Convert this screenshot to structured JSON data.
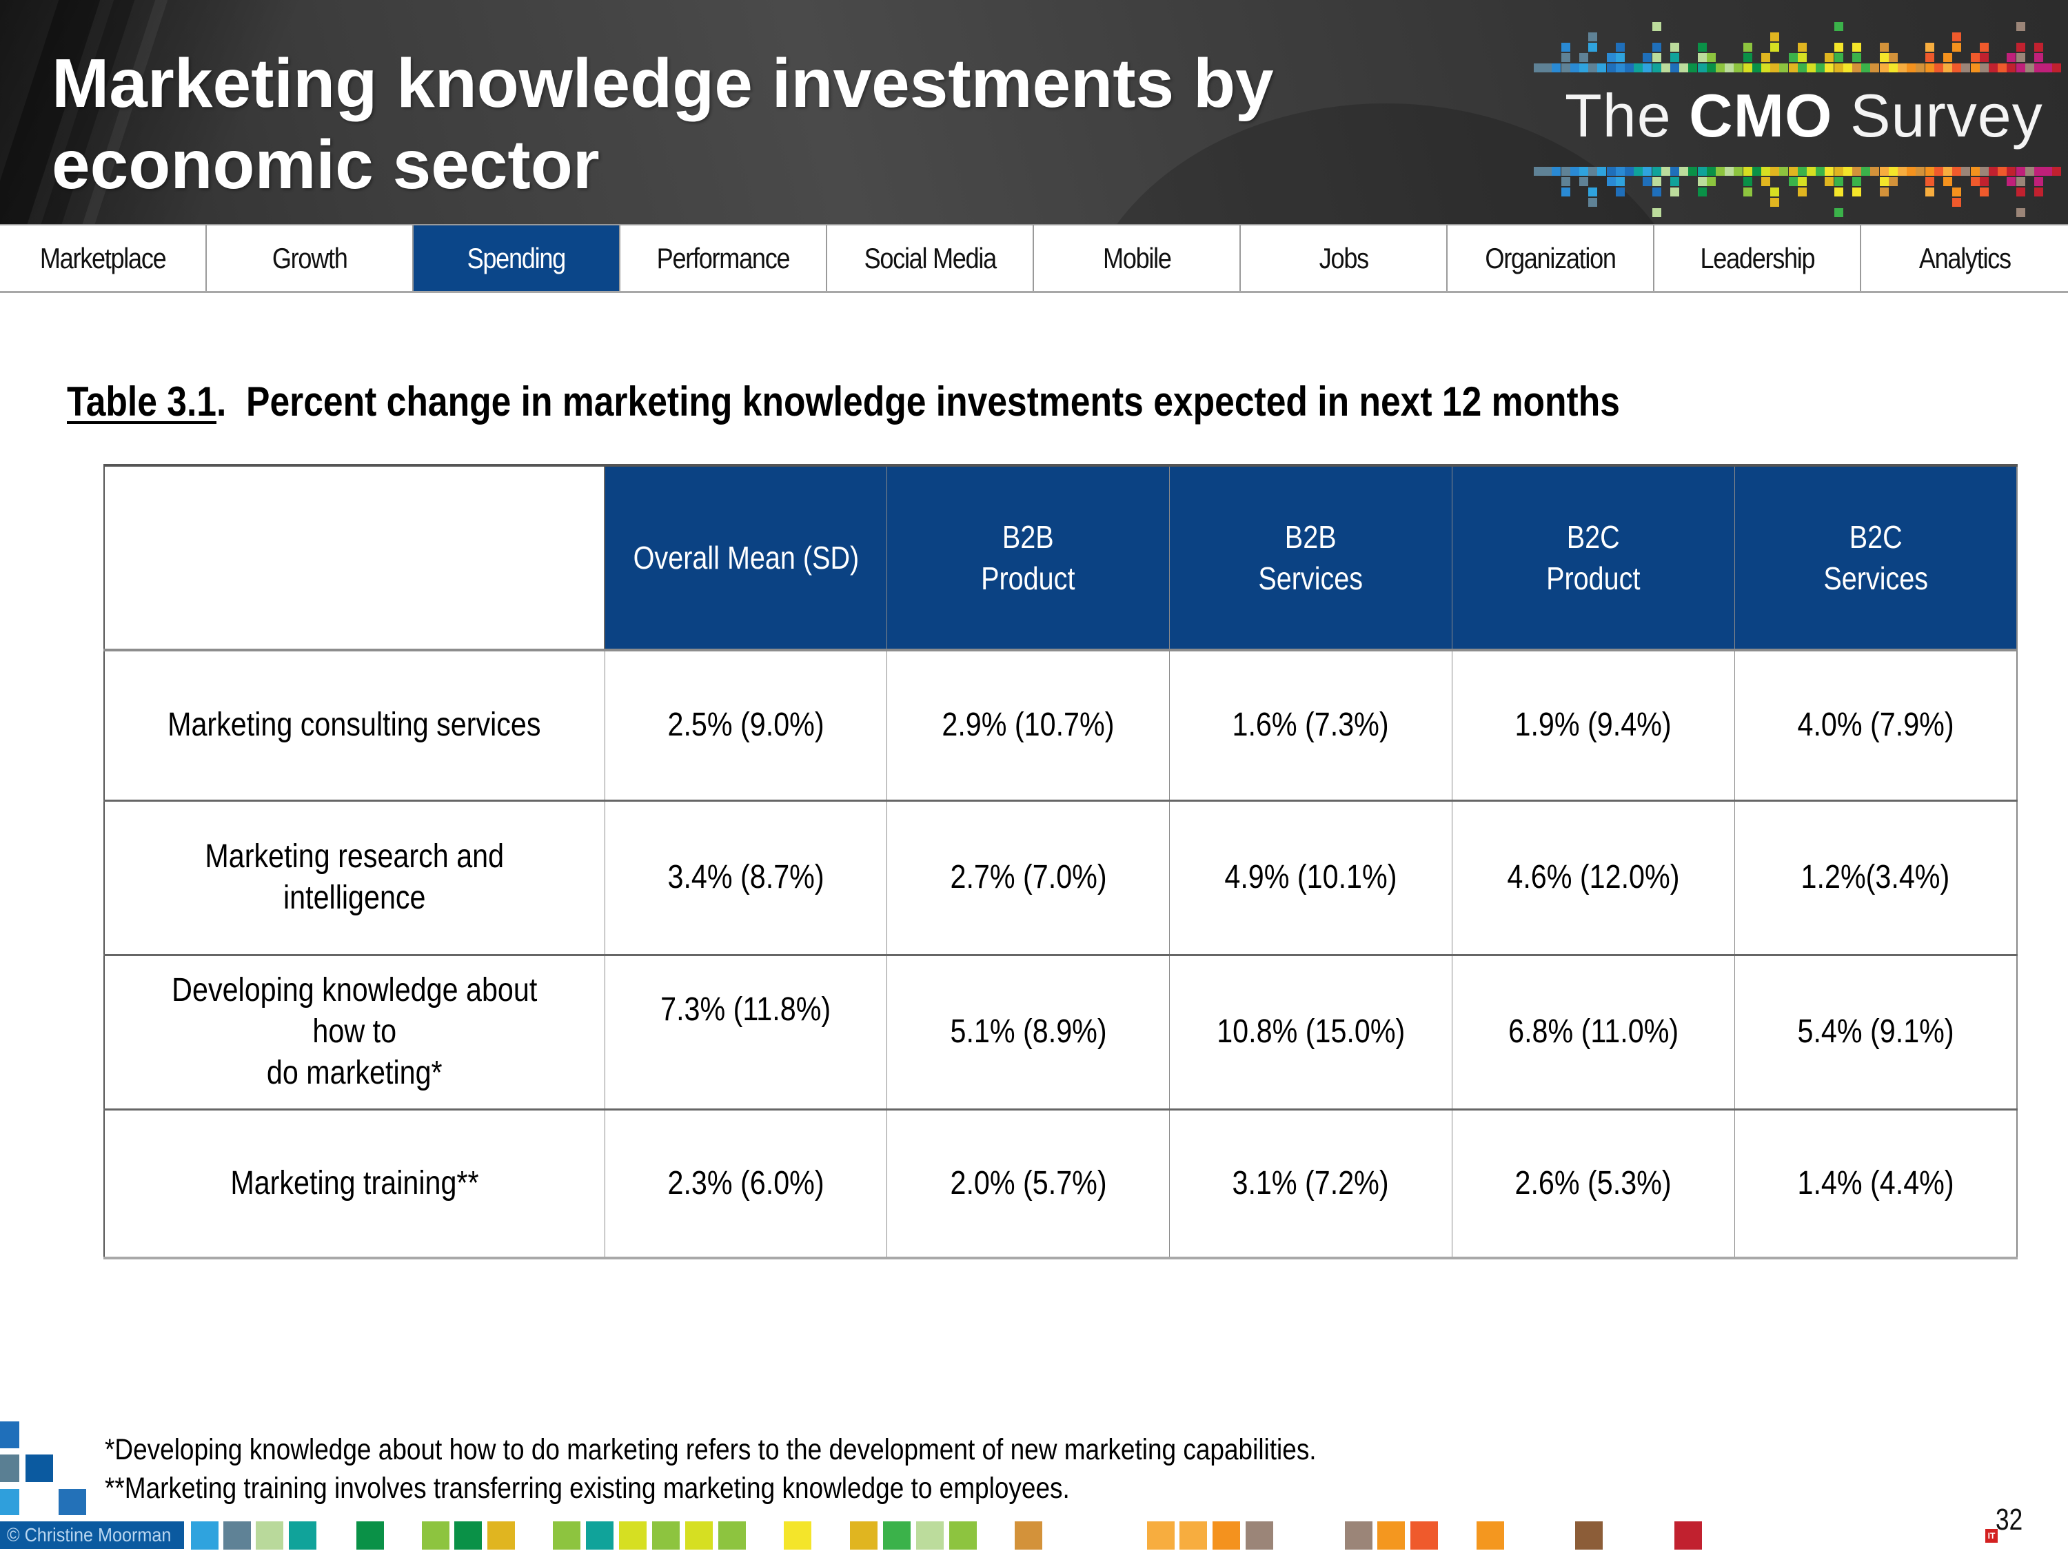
{
  "header": {
    "title_line1": "Marketing knowledge investments by",
    "title_line2": "economic sector",
    "logo": {
      "the": "The",
      "cmo": "CMO",
      "survey": "Survey"
    }
  },
  "nav": {
    "tabs": [
      {
        "label": "Marketplace",
        "active": false
      },
      {
        "label": "Growth",
        "active": false
      },
      {
        "label": "Spending",
        "active": true
      },
      {
        "label": "Performance",
        "active": false
      },
      {
        "label": "Social Media",
        "active": false
      },
      {
        "label": "Mobile",
        "active": false
      },
      {
        "label": "Jobs",
        "active": false
      },
      {
        "label": "Organization",
        "active": false
      },
      {
        "label": "Leadership",
        "active": false
      },
      {
        "label": "Analytics",
        "active": false
      }
    ],
    "active_color": "#0b4689"
  },
  "table": {
    "number": "Table 3.1",
    "punct": ".",
    "title": "Percent change in marketing knowledge investments expected in next 12 months",
    "header_color": "#0b4283",
    "columns": [
      {
        "line1": "Overall  Mean (SD)",
        "line2": ""
      },
      {
        "line1": "B2B",
        "line2": "Product"
      },
      {
        "line1": "B2B",
        "line2": "Services"
      },
      {
        "line1": "B2C",
        "line2": "Product"
      },
      {
        "line1": "B2C",
        "line2": "Services"
      }
    ],
    "rows": [
      {
        "label": "Marketing consulting services",
        "label_line2": "",
        "values": [
          "2.5% (9.0%)",
          "2.9% (10.7%)",
          "1.6% (7.3%)",
          "1.9% (9.4%)",
          "4.0% (7.9%)"
        ]
      },
      {
        "label": "Marketing research and intelligence",
        "label_line2": "",
        "values": [
          "3.4% (8.7%)",
          "2.7% (7.0%)",
          "4.9% (10.1%)",
          "4.6% (12.0%)",
          "1.2%(3.4%)"
        ]
      },
      {
        "label": "Developing knowledge about how to",
        "label_line2": "do marketing*",
        "values": [
          "7.3% (11.8%)",
          "5.1% (8.9%)",
          "10.8% (15.0%)",
          "6.8% (11.0%)",
          "5.4% (9.1%)"
        ]
      },
      {
        "label": "Marketing training**",
        "label_line2": "",
        "values": [
          "2.3% (6.0%)",
          "2.0% (5.7%)",
          "3.1% (7.2%)",
          "2.6% (5.3%)",
          "1.4% (4.4%)"
        ]
      }
    ]
  },
  "footnotes": {
    "note1": "*Developing knowledge about how to do marketing refers to the development of new marketing capabilities.",
    "note2": "**Marketing training involves transferring existing marketing knowledge to employees."
  },
  "footer": {
    "copyright": "© Christine Moorman",
    "page_number": "32",
    "badge": "IT"
  }
}
